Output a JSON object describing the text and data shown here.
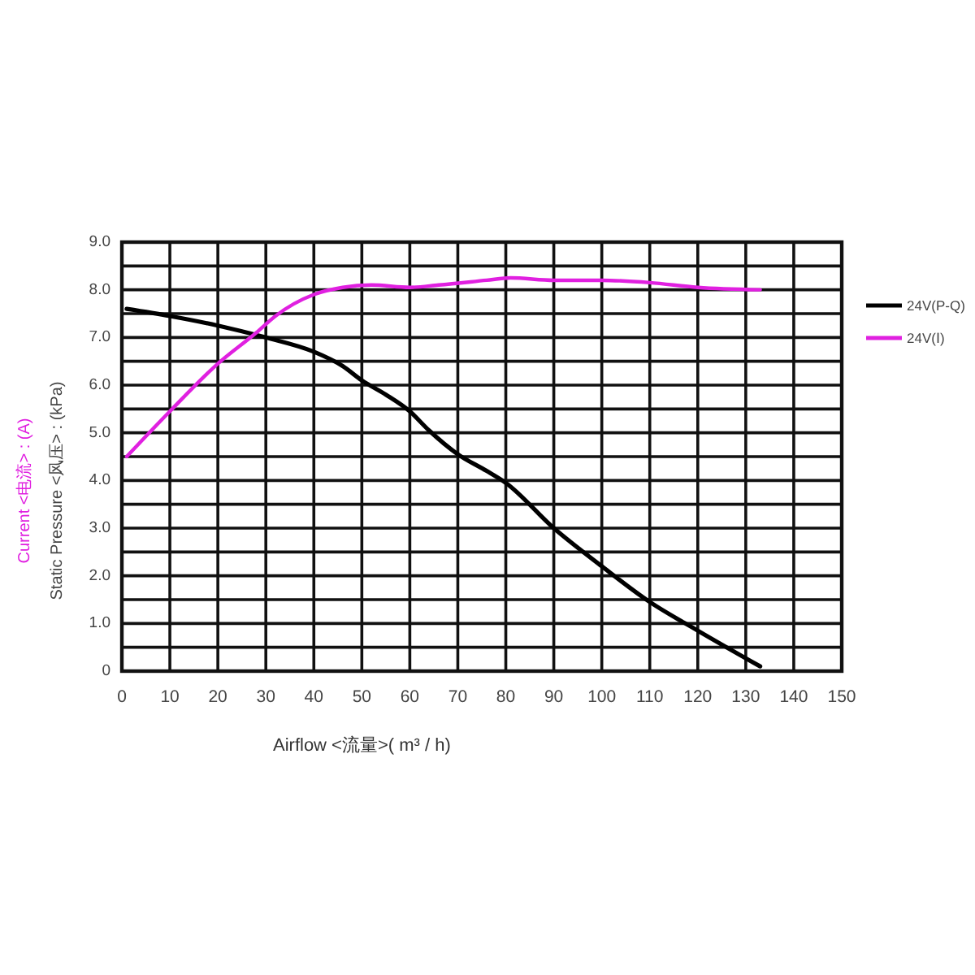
{
  "chart_data": {
    "type": "line",
    "xlabel": "Airflow <流量>( m³ / h)",
    "ylabel": "Current <电流> : (A)\nStatic Pressure <风压> : (kPa)",
    "xlim": [
      0,
      150
    ],
    "ylim": [
      0,
      9
    ],
    "xticks": [
      0,
      10,
      20,
      30,
      40,
      50,
      60,
      70,
      80,
      90,
      100,
      110,
      120,
      130,
      140,
      150
    ],
    "yticks": [
      0,
      {
        "value": 0.5,
        "label": null
      },
      {
        "value": 1,
        "label": "1.0"
      },
      {
        "value": 1.5,
        "label": null
      },
      {
        "value": 2,
        "label": "2.0"
      },
      {
        "value": 2.5,
        "label": null
      },
      {
        "value": 3,
        "label": "3.0"
      },
      {
        "value": 3.5,
        "label": null
      },
      {
        "value": 4,
        "label": "4.0"
      },
      {
        "value": 4.5,
        "label": null
      },
      {
        "value": 5,
        "label": "5.0"
      },
      {
        "value": 5.5,
        "label": null
      },
      {
        "value": 6,
        "label": "6.0"
      },
      {
        "value": 6.5,
        "label": null
      },
      {
        "value": 7,
        "label": "7.0"
      },
      {
        "value": 7.5,
        "label": null
      },
      {
        "value": 8,
        "label": "8.0"
      },
      {
        "value": 8.5,
        "label": null
      },
      {
        "value": 9,
        "label": "9.0"
      }
    ],
    "grid": true,
    "legend": "top right",
    "series": [
      {
        "name": "24V(P-Q)",
        "color": "#000000",
        "x": [
          1,
          10,
          20,
          30,
          40,
          46,
          50,
          55,
          60,
          64,
          70,
          76,
          80,
          90,
          100,
          110,
          120,
          133
        ],
        "values": [
          7.6,
          7.45,
          7.25,
          7.0,
          6.7,
          6.4,
          6.1,
          5.8,
          5.45,
          5.05,
          4.55,
          4.2,
          3.95,
          3.0,
          2.2,
          1.45,
          0.85,
          0.1
        ]
      },
      {
        "name": "24V(Ⅰ)",
        "color": "#e020e0",
        "x": [
          1,
          10,
          20,
          28,
          32,
          40,
          46,
          52,
          60,
          66,
          76,
          81,
          90,
          100,
          110,
          120,
          133
        ],
        "values": [
          4.5,
          5.45,
          6.45,
          7.1,
          7.45,
          7.9,
          8.05,
          8.1,
          8.05,
          8.1,
          8.2,
          8.25,
          8.2,
          8.2,
          8.15,
          8.05,
          8.0
        ]
      }
    ]
  }
}
